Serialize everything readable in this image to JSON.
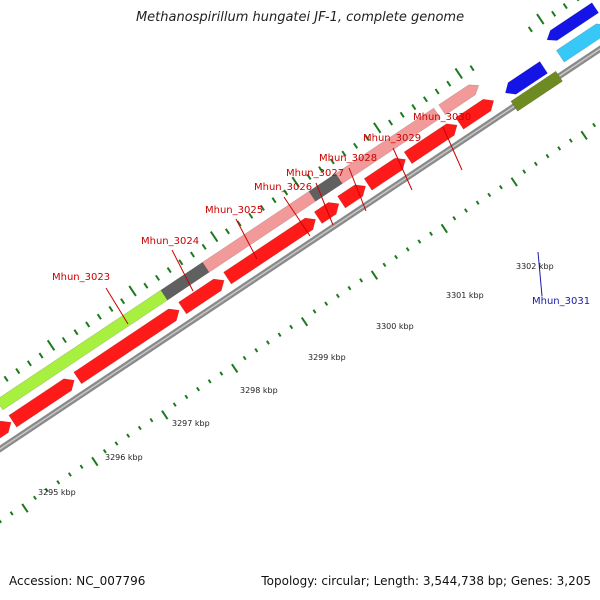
{
  "title": "Methanospirillum hungatei JF-1, complete genome",
  "footer": {
    "accession": "Accession: NC_007796",
    "summary": "Topology: circular; Length: 3,544,738 bp; Genes: 3,205"
  },
  "colors": {
    "backbone": "#8a8a8a",
    "tick": "#1e7a1e",
    "label_red": "#cc0000",
    "label_blue": "#1a1aa8",
    "cds_red": "#ff1a1a",
    "cds_pink": "#f29a9a",
    "cds_lime": "#a8f040",
    "cds_grey": "#606060",
    "cds_olive": "#6e8a22",
    "cds_khaki": "#c8c07a",
    "cds_blue": "#1414e6",
    "cds_cyan": "#38c8f8"
  },
  "gene_labels": [
    {
      "id": "g3023",
      "text": "Mhun_3023",
      "color": "label_red"
    },
    {
      "id": "g3024",
      "text": "Mhun_3024",
      "color": "label_red"
    },
    {
      "id": "g3025",
      "text": "Mhun_3025",
      "color": "label_red"
    },
    {
      "id": "g3026",
      "text": "Mhun_3026",
      "color": "label_red"
    },
    {
      "id": "g3027",
      "text": "Mhun_3027",
      "color": "label_red"
    },
    {
      "id": "g3028",
      "text": "Mhun_3028",
      "color": "label_red"
    },
    {
      "id": "g3029",
      "text": "Mhun_3029",
      "color": "label_red"
    },
    {
      "id": "g3030",
      "text": "Mhun_3030",
      "color": "label_red"
    },
    {
      "id": "g3031",
      "text": "Mhun_3031",
      "color": "label_blue"
    }
  ],
  "kbp_labels": [
    "3295 kbp",
    "3296 kbp",
    "3297 kbp",
    "3298 kbp",
    "3299 kbp",
    "3300 kbp",
    "3301 kbp",
    "3302 kbp"
  ]
}
